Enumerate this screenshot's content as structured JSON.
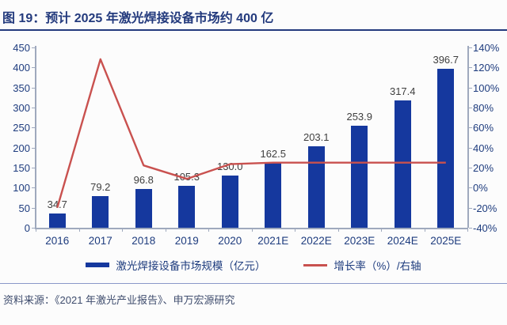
{
  "figure": {
    "title": "图 19：预计 2025 年激光焊接设备市场约 400 亿"
  },
  "source": {
    "text": "资料来源：《2021 年激光产业报告》、申万宏源研究"
  },
  "legend": {
    "items": [
      {
        "label": "激光焊接设备市场规模（亿元）",
        "marker": "bar-swatch",
        "color": "#15389e"
      },
      {
        "label": "增长率（%）/右轴",
        "marker": "line-swatch",
        "color": "#c9514f"
      }
    ]
  },
  "colors": {
    "bar": "#15389e",
    "line": "#c9514f",
    "title": "#233a7d",
    "axis": "#9fa9bd",
    "axis_label": "#1e3c7e",
    "data_label": "#3f3f3f",
    "divider": "#8a97c9",
    "source_text": "#3e4c6d"
  },
  "chart_data": {
    "type": "bar",
    "subtype": "bar-with-line-overlay",
    "title": "预计 2025 年激光焊接设备市场约 400 亿",
    "categories": [
      "2016",
      "2017",
      "2018",
      "2019",
      "2020",
      "2021E",
      "2022E",
      "2023E",
      "2024E",
      "2025E"
    ],
    "series": [
      {
        "name": "激光焊接设备市场规模（亿元）",
        "type": "bar",
        "axis": "left",
        "values": [
          34.7,
          79.2,
          96.8,
          105.3,
          130.0,
          162.5,
          203.1,
          253.9,
          317.4,
          396.7
        ],
        "labels": [
          "34.7",
          "79.2",
          "96.8",
          "105.3",
          "130.0",
          "162.5",
          "203.1",
          "253.9",
          "317.4",
          "396.7"
        ]
      },
      {
        "name": "增长率（%）/右轴",
        "type": "line",
        "axis": "right",
        "values": [
          -20.0,
          128.2,
          22.2,
          8.8,
          23.5,
          25.0,
          25.0,
          25.0,
          25.0,
          25.0
        ]
      }
    ],
    "left_axis": {
      "min": 0,
      "max": 450,
      "tick_step": 50,
      "ticks": [
        450,
        400,
        350,
        300,
        250,
        200,
        150,
        100,
        50,
        0
      ]
    },
    "right_axis": {
      "min": -40,
      "max": 140,
      "tick_step": 20,
      "tick_labels": [
        "140%",
        "120%",
        "100%",
        "80%",
        "60%",
        "40%",
        "20%",
        "0%",
        "-20%",
        "-40%"
      ]
    },
    "grid": false,
    "legend_position": "bottom"
  }
}
